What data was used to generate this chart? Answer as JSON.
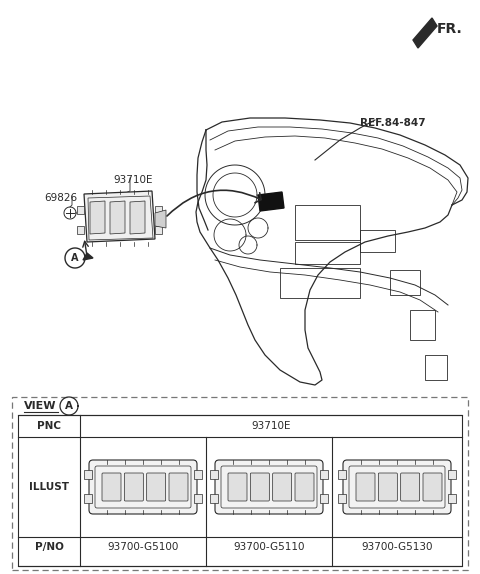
{
  "bg_color": "#ffffff",
  "fig_width": 4.8,
  "fig_height": 5.74,
  "fr_label": "FR.",
  "ref_label": "REF.84-847",
  "part_69826": "69826",
  "part_93710E": "93710E",
  "view_label": "VIEW",
  "table_pnc_label": "PNC",
  "table_pnc_value": "93710E",
  "table_illust_label": "ILLUST",
  "table_pno_label": "P/NO",
  "part_numbers": [
    "93700-G5100",
    "93700-G5110",
    "93700-G5130"
  ],
  "line_color": "#2a2a2a",
  "dash_color": "#666666",
  "face_color": "#f5f5f5"
}
